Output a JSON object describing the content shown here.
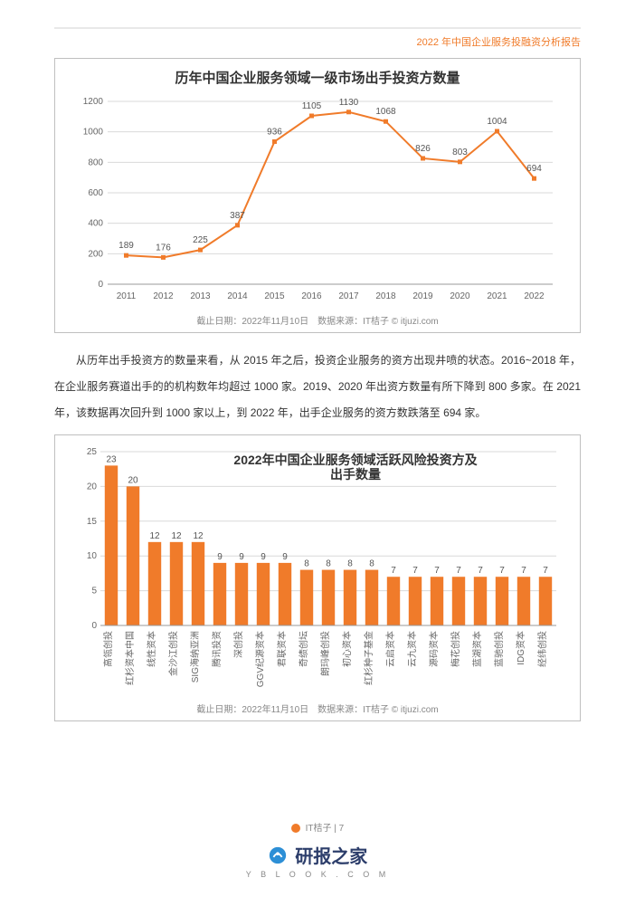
{
  "header": {
    "report_title": "2022 年中国企业服务投融资分析报告"
  },
  "chart1": {
    "type": "line",
    "title": "历年中国企业服务领域一级市场出手投资方数量",
    "x_categories": [
      "2011",
      "2012",
      "2013",
      "2014",
      "2015",
      "2016",
      "2017",
      "2018",
      "2019",
      "2020",
      "2021",
      "2022"
    ],
    "values": [
      189,
      176,
      225,
      387,
      936,
      1105,
      1130,
      1068,
      826,
      803,
      1004,
      694
    ],
    "line_color": "#f07b2a",
    "marker_fill": "#f07b2a",
    "marker_size": 5,
    "line_width": 2,
    "ylim": [
      0,
      1200
    ],
    "ytick_step": 200,
    "grid_color": "#d9d9d9",
    "axis_color": "#999999",
    "label_color": "#666666",
    "value_label_color": "#555555",
    "label_fontsize": 10,
    "value_fontsize": 10,
    "background_color": "#ffffff",
    "footer_text": "截止日期：2022年11月10日 数据来源：IT桔子 © itjuzi.com"
  },
  "body": {
    "paragraph": "从历年出手投资方的数量来看，从 2015 年之后，投资企业服务的资方出现井喷的状态。2016~2018 年，在企业服务赛道出手的的机构数年均超过 1000 家。2019、2020 年出资方数量有所下降到 800 多家。在 2021 年，该数据再次回升到 1000 家以上，到 2022 年，出手企业服务的资方数跌落至 694 家。"
  },
  "chart2": {
    "type": "bar",
    "title": "2022年中国企业服务领域活跃风险投资方及出手数量",
    "categories": [
      "高瓴创投",
      "红杉资本中国",
      "线性资本",
      "金沙江创投",
      "SIG海纳亚洲",
      "腾讯投资",
      "深创投",
      "GGV纪源资本",
      "君联资本",
      "奇绩创坛",
      "朗玛峰创投",
      "初心资本",
      "红杉种子基金",
      "云启资本",
      "云九资本",
      "源码资本",
      "梅花创投",
      "蓝湖资本",
      "蓝驰创投",
      "IDG资本",
      "经纬创投"
    ],
    "values": [
      23,
      20,
      12,
      12,
      12,
      9,
      9,
      9,
      9,
      8,
      8,
      8,
      8,
      7,
      7,
      7,
      7,
      7,
      7,
      7,
      7
    ],
    "bar_color": "#f07b2a",
    "ylim": [
      0,
      25
    ],
    "ytick_step": 5,
    "grid_color": "#d9d9d9",
    "axis_color": "#999999",
    "label_color": "#666666",
    "value_label_color": "#555555",
    "label_fontsize": 10,
    "value_fontsize": 10,
    "bar_width_ratio": 0.6,
    "background_color": "#ffffff",
    "footer_text": "截止日期：2022年11月10日 数据来源：IT桔子 © itjuzi.com"
  },
  "footer": {
    "brand": "IT桔子",
    "page_number": "7"
  },
  "watermark": {
    "text": "研报之家",
    "sub": "Y B L O O K . C O M",
    "icon_color": "#2d8fd6"
  }
}
